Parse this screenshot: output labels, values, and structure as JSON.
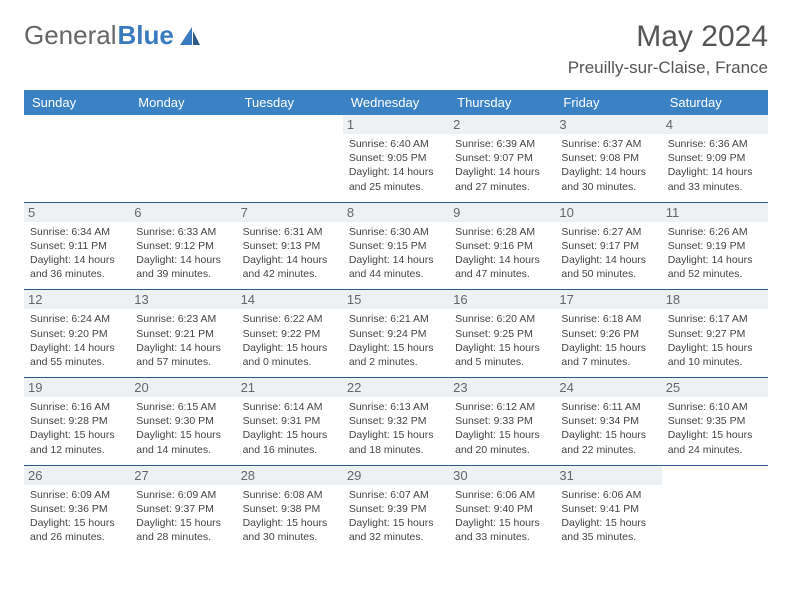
{
  "brand": {
    "part1": "General",
    "part2": "Blue"
  },
  "title": "May 2024",
  "location": "Preuilly-sur-Claise, France",
  "colors": {
    "header_bg": "#3b82c4",
    "header_text": "#ffffff",
    "row_divider": "#2f5b88",
    "daynum_bg": "#eef1f3",
    "daynum_text": "#666666",
    "body_text": "#444444",
    "brand_gray": "#666666",
    "brand_blue": "#3a7bbf"
  },
  "typography": {
    "title_fontsize": 30,
    "location_fontsize": 17,
    "header_fontsize": 13,
    "daynum_fontsize": 13,
    "info_fontsize": 10.5
  },
  "weekdays": [
    "Sunday",
    "Monday",
    "Tuesday",
    "Wednesday",
    "Thursday",
    "Friday",
    "Saturday"
  ],
  "weeks": [
    [
      {
        "day": "",
        "sunrise": "",
        "sunset": "",
        "daylight": "",
        "empty": true
      },
      {
        "day": "",
        "sunrise": "",
        "sunset": "",
        "daylight": "",
        "empty": true
      },
      {
        "day": "",
        "sunrise": "",
        "sunset": "",
        "daylight": "",
        "empty": true
      },
      {
        "day": "1",
        "sunrise": "6:40 AM",
        "sunset": "9:05 PM",
        "daylight": "14 hours and 25 minutes."
      },
      {
        "day": "2",
        "sunrise": "6:39 AM",
        "sunset": "9:07 PM",
        "daylight": "14 hours and 27 minutes."
      },
      {
        "day": "3",
        "sunrise": "6:37 AM",
        "sunset": "9:08 PM",
        "daylight": "14 hours and 30 minutes."
      },
      {
        "day": "4",
        "sunrise": "6:36 AM",
        "sunset": "9:09 PM",
        "daylight": "14 hours and 33 minutes."
      }
    ],
    [
      {
        "day": "5",
        "sunrise": "6:34 AM",
        "sunset": "9:11 PM",
        "daylight": "14 hours and 36 minutes."
      },
      {
        "day": "6",
        "sunrise": "6:33 AM",
        "sunset": "9:12 PM",
        "daylight": "14 hours and 39 minutes."
      },
      {
        "day": "7",
        "sunrise": "6:31 AM",
        "sunset": "9:13 PM",
        "daylight": "14 hours and 42 minutes."
      },
      {
        "day": "8",
        "sunrise": "6:30 AM",
        "sunset": "9:15 PM",
        "daylight": "14 hours and 44 minutes."
      },
      {
        "day": "9",
        "sunrise": "6:28 AM",
        "sunset": "9:16 PM",
        "daylight": "14 hours and 47 minutes."
      },
      {
        "day": "10",
        "sunrise": "6:27 AM",
        "sunset": "9:17 PM",
        "daylight": "14 hours and 50 minutes."
      },
      {
        "day": "11",
        "sunrise": "6:26 AM",
        "sunset": "9:19 PM",
        "daylight": "14 hours and 52 minutes."
      }
    ],
    [
      {
        "day": "12",
        "sunrise": "6:24 AM",
        "sunset": "9:20 PM",
        "daylight": "14 hours and 55 minutes."
      },
      {
        "day": "13",
        "sunrise": "6:23 AM",
        "sunset": "9:21 PM",
        "daylight": "14 hours and 57 minutes."
      },
      {
        "day": "14",
        "sunrise": "6:22 AM",
        "sunset": "9:22 PM",
        "daylight": "15 hours and 0 minutes."
      },
      {
        "day": "15",
        "sunrise": "6:21 AM",
        "sunset": "9:24 PM",
        "daylight": "15 hours and 2 minutes."
      },
      {
        "day": "16",
        "sunrise": "6:20 AM",
        "sunset": "9:25 PM",
        "daylight": "15 hours and 5 minutes."
      },
      {
        "day": "17",
        "sunrise": "6:18 AM",
        "sunset": "9:26 PM",
        "daylight": "15 hours and 7 minutes."
      },
      {
        "day": "18",
        "sunrise": "6:17 AM",
        "sunset": "9:27 PM",
        "daylight": "15 hours and 10 minutes."
      }
    ],
    [
      {
        "day": "19",
        "sunrise": "6:16 AM",
        "sunset": "9:28 PM",
        "daylight": "15 hours and 12 minutes."
      },
      {
        "day": "20",
        "sunrise": "6:15 AM",
        "sunset": "9:30 PM",
        "daylight": "15 hours and 14 minutes."
      },
      {
        "day": "21",
        "sunrise": "6:14 AM",
        "sunset": "9:31 PM",
        "daylight": "15 hours and 16 minutes."
      },
      {
        "day": "22",
        "sunrise": "6:13 AM",
        "sunset": "9:32 PM",
        "daylight": "15 hours and 18 minutes."
      },
      {
        "day": "23",
        "sunrise": "6:12 AM",
        "sunset": "9:33 PM",
        "daylight": "15 hours and 20 minutes."
      },
      {
        "day": "24",
        "sunrise": "6:11 AM",
        "sunset": "9:34 PM",
        "daylight": "15 hours and 22 minutes."
      },
      {
        "day": "25",
        "sunrise": "6:10 AM",
        "sunset": "9:35 PM",
        "daylight": "15 hours and 24 minutes."
      }
    ],
    [
      {
        "day": "26",
        "sunrise": "6:09 AM",
        "sunset": "9:36 PM",
        "daylight": "15 hours and 26 minutes."
      },
      {
        "day": "27",
        "sunrise": "6:09 AM",
        "sunset": "9:37 PM",
        "daylight": "15 hours and 28 minutes."
      },
      {
        "day": "28",
        "sunrise": "6:08 AM",
        "sunset": "9:38 PM",
        "daylight": "15 hours and 30 minutes."
      },
      {
        "day": "29",
        "sunrise": "6:07 AM",
        "sunset": "9:39 PM",
        "daylight": "15 hours and 32 minutes."
      },
      {
        "day": "30",
        "sunrise": "6:06 AM",
        "sunset": "9:40 PM",
        "daylight": "15 hours and 33 minutes."
      },
      {
        "day": "31",
        "sunrise": "6:06 AM",
        "sunset": "9:41 PM",
        "daylight": "15 hours and 35 minutes."
      },
      {
        "day": "",
        "sunrise": "",
        "sunset": "",
        "daylight": "",
        "empty": true
      }
    ]
  ],
  "labels": {
    "sunrise": "Sunrise:",
    "sunset": "Sunset:",
    "daylight": "Daylight:"
  }
}
